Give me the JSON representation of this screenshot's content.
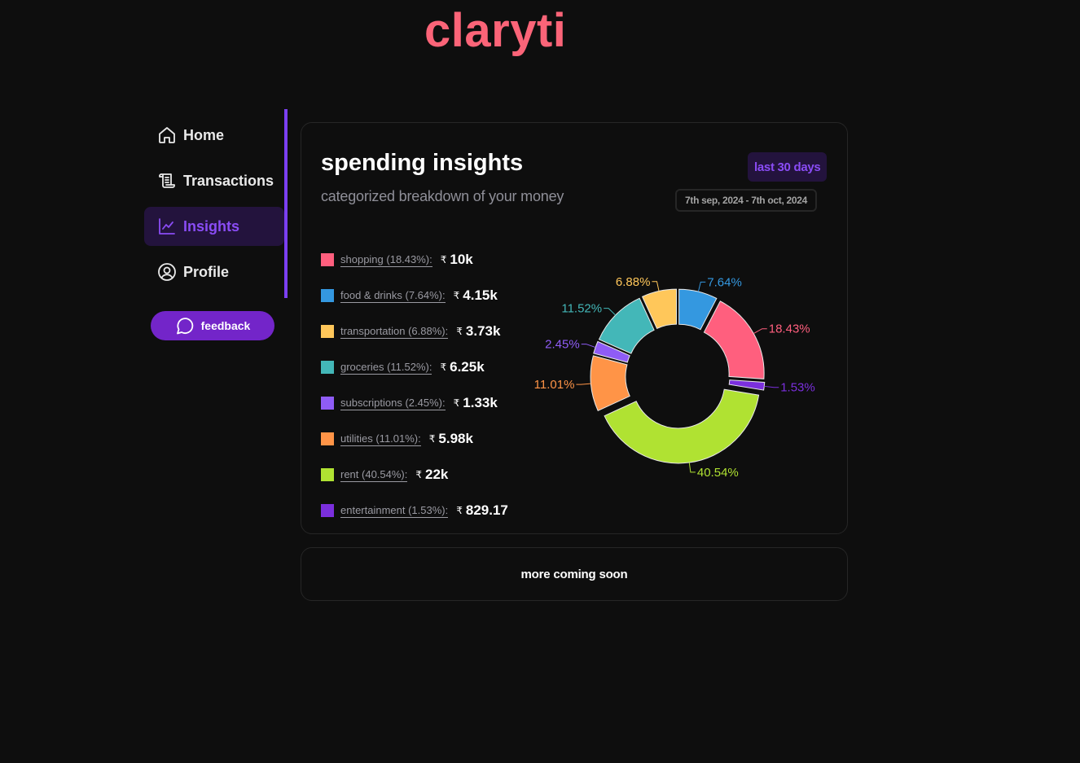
{
  "app": {
    "logo": "claryti",
    "brand_color": "#fb6478",
    "accent_color": "#7b3ff2"
  },
  "sidebar": {
    "items": [
      {
        "label": "Home",
        "icon": "home-icon",
        "active": false
      },
      {
        "label": "Transactions",
        "icon": "scroll-icon",
        "active": false
      },
      {
        "label": "Insights",
        "icon": "line-chart-icon",
        "active": true
      },
      {
        "label": "Profile",
        "icon": "user-circle-icon",
        "active": false
      }
    ],
    "feedback_label": "feedback"
  },
  "insights": {
    "title": "spending insights",
    "subtitle": "categorized breakdown of your money",
    "range_label": "last 30 days",
    "date_range": "7th sep, 2024 - 7th oct, 2024",
    "currency_symbol": "₹",
    "categories": [
      {
        "label": "shopping (18.43%):",
        "value": "10k",
        "color": "#ff5f7e"
      },
      {
        "label": "food & drinks (7.64%):",
        "value": "4.15k",
        "color": "#3498e0"
      },
      {
        "label": "transportation (6.88%):",
        "value": "3.73k",
        "color": "#ffc75a"
      },
      {
        "label": "groceries (11.52%):",
        "value": "6.25k",
        "color": "#43b7b8"
      },
      {
        "label": "subscriptions (2.45%):",
        "value": "1.33k",
        "color": "#8f5cf6"
      },
      {
        "label": "utilities (11.01%):",
        "value": "5.98k",
        "color": "#ff9447"
      },
      {
        "label": "rent (40.54%):",
        "value": "22k",
        "color": "#b0e232"
      },
      {
        "label": "entertainment (1.53%):",
        "value": "829.17",
        "color": "#7b2fdd"
      }
    ]
  },
  "chart_data": {
    "type": "pie",
    "variant": "donut",
    "title": "spending insights",
    "categories": [
      "shopping",
      "food & drinks",
      "transportation",
      "groceries",
      "subscriptions",
      "utilities",
      "rent",
      "entertainment"
    ],
    "values": [
      18.43,
      7.64,
      6.88,
      11.52,
      2.45,
      11.01,
      40.54,
      1.53
    ],
    "amounts": [
      "10k",
      "4.15k",
      "3.73k",
      "6.25k",
      "1.33k",
      "5.98k",
      "22k",
      "829.17"
    ],
    "colors": [
      "#ff5f7e",
      "#3498e0",
      "#ffc75a",
      "#43b7b8",
      "#8f5cf6",
      "#ff9447",
      "#b0e232",
      "#7b2fdd"
    ],
    "labels": [
      "18.43%",
      "7.64%",
      "6.88%",
      "11.52%",
      "2.45%",
      "11.01%",
      "40.54%",
      "1.53%"
    ],
    "unit": "%",
    "legend_position": "left"
  },
  "footer_card": {
    "text": "more coming soon"
  }
}
